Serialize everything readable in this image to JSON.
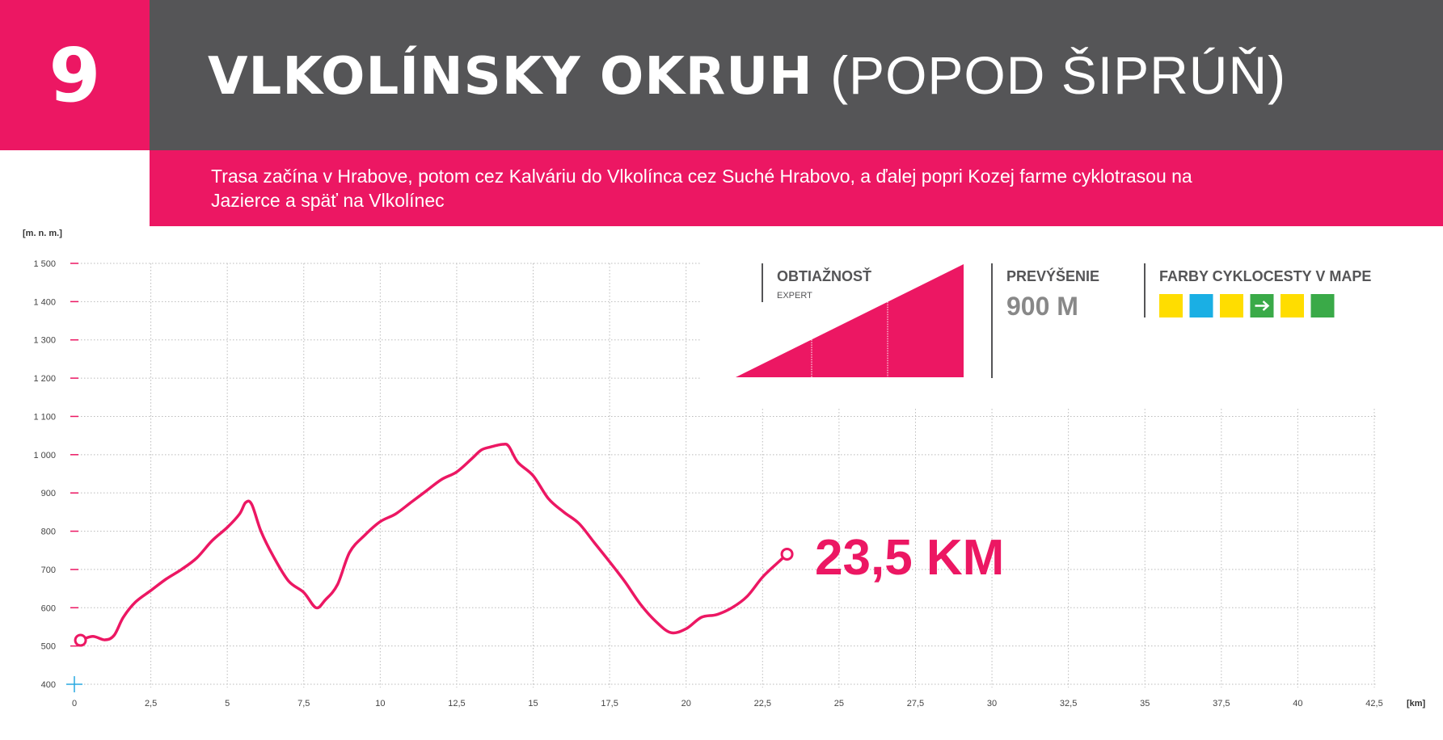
{
  "header": {
    "number": "9",
    "title_bold": "VLKOLÍNSKY OKRUH",
    "title_paren_open": "(",
    "title_light": "POPOD ŠIPRÚŇ",
    "title_paren_close": ")",
    "description": "Trasa začína v Hrabove, potom cez Kalváriu do Vlkolínca cez Suché Hrabovo, a ďalej popri Kozej farme cyklotrasou na Jazierce a späť na Vlkolínec"
  },
  "info": {
    "difficulty_label": "OBTIAŽNOSŤ",
    "difficulty_value": "EXPERT",
    "difficulty_levels": 3,
    "difficulty_level": 3,
    "elevation_label": "PREVÝŠENIE",
    "elevation_value": "900 M",
    "colors_label": "FARBY CYKLOCESTY V MAPE",
    "trail_colors": [
      {
        "color": "#ffdd00",
        "icon": ""
      },
      {
        "color": "#1aafe4",
        "icon": ""
      },
      {
        "color": "#ffdd00",
        "icon": ""
      },
      {
        "color": "#3aaa48",
        "icon": "arrow-right-icon"
      },
      {
        "color": "#ffdd00",
        "icon": ""
      },
      {
        "color": "#3aaa48",
        "icon": ""
      }
    ]
  },
  "colors": {
    "accent": "#ec1763",
    "header_bg": "#555557",
    "grid": "#bbbbbb",
    "axis_tick": "#ec1763",
    "origin_mark": "#29a8e0"
  },
  "chart_data": {
    "type": "line",
    "ylabel": "[m. n. m.]",
    "xlabel": "[km]",
    "ylim": [
      400,
      1500
    ],
    "xlim": [
      0,
      42.5
    ],
    "yticks": [
      400,
      500,
      600,
      700,
      800,
      900,
      1000,
      1100,
      1200,
      1300,
      1400,
      1500
    ],
    "ytick_labels": [
      "400",
      "500",
      "600",
      "700",
      "800",
      "900",
      "1 000",
      "1 100",
      "1 200",
      "1 300",
      "1 400",
      "1 500"
    ],
    "xticks": [
      0,
      2.5,
      5,
      7.5,
      10,
      12.5,
      15,
      17.5,
      20,
      22.5,
      25,
      27.5,
      30,
      32.5,
      35,
      37.5,
      40,
      42.5
    ],
    "xtick_labels": [
      "0",
      "2,5",
      "5",
      "7,5",
      "10",
      "12,5",
      "15",
      "17,5",
      "20",
      "22,5",
      "25",
      "27,5",
      "30",
      "32,5",
      "35",
      "37,5",
      "40",
      "42,5"
    ],
    "grid": true,
    "total_label": "23,5 KM",
    "series": [
      {
        "x": [
          0.2,
          0.6,
          1.0,
          1.3,
          1.6,
          2.0,
          2.5,
          3.0,
          3.5,
          4.0,
          4.5,
          5.0,
          5.4,
          5.6,
          5.8,
          6.1,
          6.5,
          7.0,
          7.5,
          7.9,
          8.2,
          8.6,
          9.0,
          9.5,
          10.0,
          10.5,
          11.0,
          11.5,
          12.0,
          12.5,
          13.0,
          13.3,
          13.6,
          14.0,
          14.2,
          14.5,
          15.0,
          15.5,
          16.0,
          16.5,
          17.0,
          17.5,
          18.0,
          18.5,
          19.0,
          19.5,
          20.0,
          20.5,
          21.0,
          21.5,
          22.0,
          22.5,
          23.0,
          23.3
        ],
        "y": [
          515,
          525,
          516,
          528,
          575,
          615,
          645,
          675,
          700,
          730,
          775,
          810,
          845,
          875,
          870,
          800,
          735,
          670,
          640,
          600,
          620,
          660,
          745,
          790,
          825,
          845,
          875,
          905,
          935,
          955,
          990,
          1012,
          1020,
          1027,
          1022,
          980,
          945,
          885,
          850,
          820,
          770,
          720,
          668,
          610,
          565,
          535,
          545,
          575,
          582,
          600,
          630,
          680,
          718,
          740
        ]
      }
    ]
  }
}
